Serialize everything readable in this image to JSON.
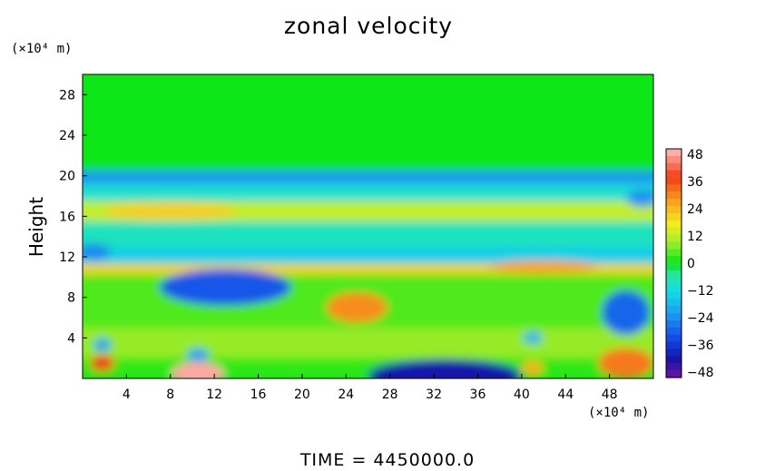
{
  "chart_data": {
    "type": "heatmap",
    "title": "zonal velocity",
    "xlabel": "",
    "ylabel": "Height",
    "x_unit": "(×10⁴ m)",
    "y_unit": "(×10⁴ m)",
    "x_ticks": [
      "4",
      "8",
      "12",
      "16",
      "20",
      "24",
      "28",
      "32",
      "36",
      "40",
      "44",
      "48"
    ],
    "y_ticks": [
      "4",
      "8",
      "12",
      "16",
      "20",
      "24",
      "28"
    ],
    "xlim": [
      0,
      52
    ],
    "ylim": [
      0,
      30
    ],
    "colorbar": {
      "ticks": [
        "48",
        "36",
        "24",
        "12",
        "0",
        "−12",
        "−24",
        "−36",
        "−48"
      ],
      "range": [
        -48,
        48
      ]
    },
    "bands": [
      {
        "y": [
          20.5,
          30
        ],
        "value": 0
      },
      {
        "y": [
          19.2,
          20.5
        ],
        "value": -22
      },
      {
        "y": [
          17.5,
          19.2
        ],
        "value": -10
      },
      {
        "y": [
          15.5,
          17.5
        ],
        "value": 12
      },
      {
        "y": [
          13.0,
          15.5
        ],
        "value": -8
      },
      {
        "y": [
          11.3,
          13.0
        ],
        "value": -14
      },
      {
        "y": [
          10.3,
          11.3
        ],
        "value": 20
      },
      {
        "y": [
          5.0,
          10.3
        ],
        "value": 4
      },
      {
        "y": [
          2.0,
          5.0
        ],
        "value": 8
      },
      {
        "y": [
          0,
          2.0
        ],
        "value": 2
      }
    ],
    "features": [
      {
        "x": 13,
        "y": 9,
        "rx": 6,
        "ry": 1.8,
        "value": -30
      },
      {
        "x": 25,
        "y": 7,
        "rx": 2.8,
        "ry": 1.5,
        "value": 28
      },
      {
        "x": 49.5,
        "y": 6.5,
        "rx": 2.2,
        "ry": 2.2,
        "value": -28
      },
      {
        "x": 10.5,
        "y": 0.4,
        "rx": 2.4,
        "ry": 1.2,
        "value": 46
      },
      {
        "x": 33,
        "y": 0.3,
        "rx": 7,
        "ry": 1.6,
        "value": -40
      },
      {
        "x": 49.5,
        "y": 1.5,
        "rx": 2.5,
        "ry": 1.5,
        "value": 30
      },
      {
        "x": 1.8,
        "y": 1.5,
        "rx": 1.1,
        "ry": 0.8,
        "value": 36
      },
      {
        "x": 1.8,
        "y": 3.3,
        "rx": 0.8,
        "ry": 0.7,
        "value": -20
      },
      {
        "x": 10.5,
        "y": 2.3,
        "rx": 1.0,
        "ry": 0.7,
        "value": -20
      },
      {
        "x": 41,
        "y": 1.0,
        "rx": 1.0,
        "ry": 0.7,
        "value": 24
      },
      {
        "x": 41,
        "y": 4.0,
        "rx": 0.9,
        "ry": 0.6,
        "value": -18
      },
      {
        "x": 8,
        "y": 16.5,
        "rx": 6,
        "ry": 0.9,
        "value": 20
      },
      {
        "x": 42,
        "y": 11.0,
        "rx": 5,
        "ry": 0.6,
        "value": 26
      },
      {
        "x": 1,
        "y": 12.5,
        "rx": 1.5,
        "ry": 0.8,
        "value": -24
      },
      {
        "x": 51,
        "y": 17.8,
        "rx": 1.5,
        "ry": 0.9,
        "value": -22
      }
    ]
  },
  "footer": {
    "time_label": "TIME  =  4450000.0"
  }
}
